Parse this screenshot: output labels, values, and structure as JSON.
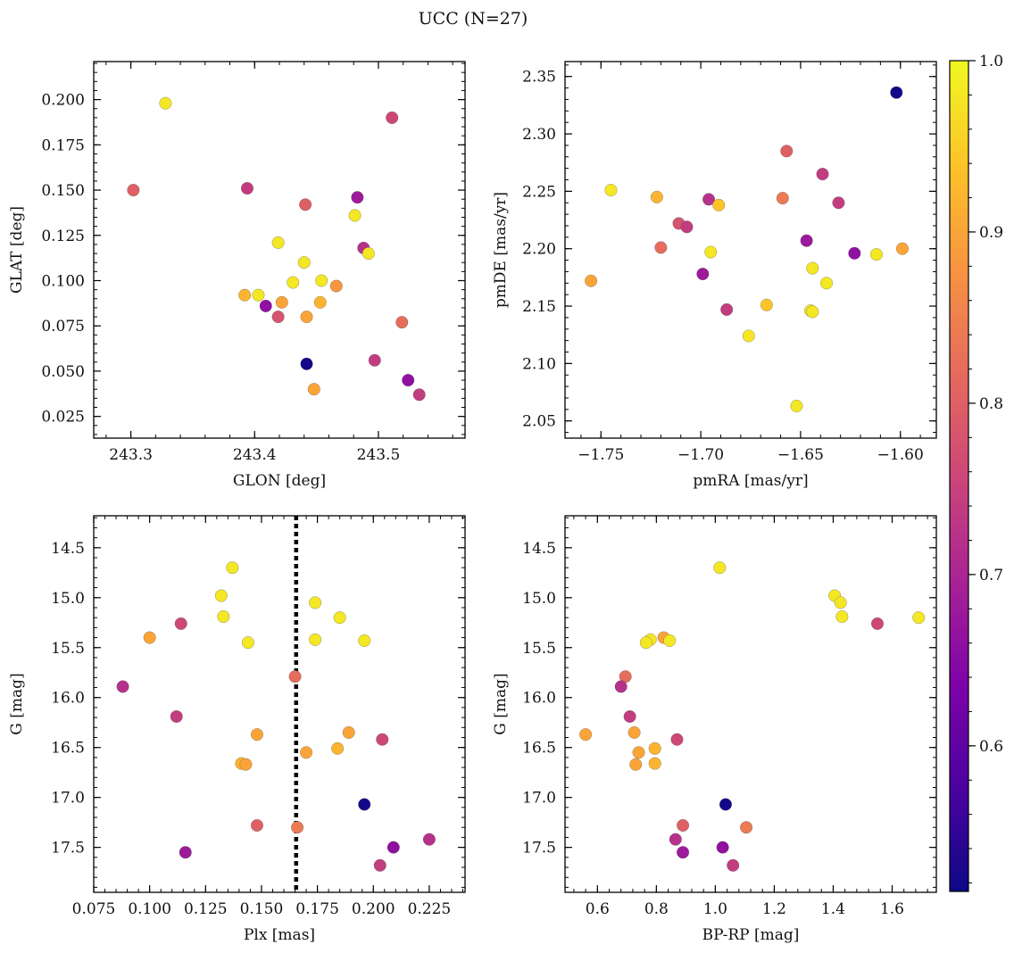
{
  "figure": {
    "title": "UCC (N=27)"
  },
  "colorbar": {
    "min": 0.515,
    "max": 1.0,
    "ticks": [
      0.6,
      0.7,
      0.8,
      0.9,
      1.0
    ],
    "tick_labels": [
      "0.6",
      "0.7",
      "0.8",
      "0.9",
      "1.0"
    ],
    "colormap": "plasma"
  },
  "chart_data": [
    {
      "type": "scatter",
      "id": "glon-glat",
      "xlabel": "GLON [deg]",
      "ylabel": "GLAT [deg]",
      "xlim": [
        243.27,
        243.57
      ],
      "ylim": [
        0.013,
        0.221
      ],
      "xticks": [
        243.3,
        243.4,
        243.5
      ],
      "xtick_labels": [
        "243.3",
        "243.4",
        "243.5"
      ],
      "yticks": [
        0.025,
        0.05,
        0.075,
        0.1,
        0.125,
        0.15,
        0.175,
        0.2
      ],
      "ytick_labels": [
        "0.025",
        "0.050",
        "0.075",
        "0.100",
        "0.125",
        "0.150",
        "0.175",
        "0.200"
      ],
      "points": [
        {
          "x": 243.302,
          "y": 0.15,
          "c": 0.8
        },
        {
          "x": 243.328,
          "y": 0.198,
          "c": 0.98
        },
        {
          "x": 243.394,
          "y": 0.151,
          "c": 0.74
        },
        {
          "x": 243.511,
          "y": 0.19,
          "c": 0.76
        },
        {
          "x": 243.441,
          "y": 0.142,
          "c": 0.8
        },
        {
          "x": 243.483,
          "y": 0.146,
          "c": 0.68
        },
        {
          "x": 243.481,
          "y": 0.136,
          "c": 0.98
        },
        {
          "x": 243.419,
          "y": 0.121,
          "c": 0.98
        },
        {
          "x": 243.488,
          "y": 0.118,
          "c": 0.72
        },
        {
          "x": 243.492,
          "y": 0.115,
          "c": 0.98
        },
        {
          "x": 243.44,
          "y": 0.11,
          "c": 0.98
        },
        {
          "x": 243.454,
          "y": 0.1,
          "c": 0.98
        },
        {
          "x": 243.431,
          "y": 0.099,
          "c": 0.98
        },
        {
          "x": 243.466,
          "y": 0.097,
          "c": 0.88
        },
        {
          "x": 243.392,
          "y": 0.092,
          "c": 0.92
        },
        {
          "x": 243.403,
          "y": 0.092,
          "c": 0.98
        },
        {
          "x": 243.422,
          "y": 0.088,
          "c": 0.9
        },
        {
          "x": 243.453,
          "y": 0.088,
          "c": 0.92
        },
        {
          "x": 243.409,
          "y": 0.086,
          "c": 0.66
        },
        {
          "x": 243.419,
          "y": 0.08,
          "c": 0.78
        },
        {
          "x": 243.442,
          "y": 0.08,
          "c": 0.9
        },
        {
          "x": 243.519,
          "y": 0.077,
          "c": 0.82
        },
        {
          "x": 243.497,
          "y": 0.056,
          "c": 0.74
        },
        {
          "x": 243.442,
          "y": 0.054,
          "c": 0.52
        },
        {
          "x": 243.524,
          "y": 0.045,
          "c": 0.66
        },
        {
          "x": 243.448,
          "y": 0.04,
          "c": 0.9
        },
        {
          "x": 243.533,
          "y": 0.037,
          "c": 0.74
        }
      ]
    },
    {
      "type": "scatter",
      "id": "pmra-pmde",
      "xlabel": "pmRA [mas/yr]",
      "ylabel": "pmDE [mas/yr]",
      "xlim": [
        -1.768,
        -1.582
      ],
      "ylim": [
        2.035,
        2.363
      ],
      "xticks": [
        -1.75,
        -1.7,
        -1.65,
        -1.6
      ],
      "xtick_labels": [
        "−1.75",
        "−1.70",
        "−1.65",
        "−1.60"
      ],
      "yticks": [
        2.05,
        2.1,
        2.15,
        2.2,
        2.25,
        2.3,
        2.35
      ],
      "ytick_labels": [
        "2.05",
        "2.10",
        "2.15",
        "2.20",
        "2.25",
        "2.30",
        "2.35"
      ],
      "points": [
        {
          "x": -1.602,
          "y": 2.336,
          "c": 0.52
        },
        {
          "x": -1.657,
          "y": 2.285,
          "c": 0.8
        },
        {
          "x": -1.639,
          "y": 2.265,
          "c": 0.74
        },
        {
          "x": -1.631,
          "y": 2.24,
          "c": 0.74
        },
        {
          "x": -1.659,
          "y": 2.244,
          "c": 0.84
        },
        {
          "x": -1.745,
          "y": 2.251,
          "c": 0.98
        },
        {
          "x": -1.722,
          "y": 2.245,
          "c": 0.92
        },
        {
          "x": -1.696,
          "y": 2.243,
          "c": 0.72
        },
        {
          "x": -1.691,
          "y": 2.238,
          "c": 0.94
        },
        {
          "x": -1.711,
          "y": 2.222,
          "c": 0.78
        },
        {
          "x": -1.707,
          "y": 2.219,
          "c": 0.74
        },
        {
          "x": -1.72,
          "y": 2.201,
          "c": 0.82
        },
        {
          "x": -1.647,
          "y": 2.207,
          "c": 0.68
        },
        {
          "x": -1.695,
          "y": 2.197,
          "c": 0.98
        },
        {
          "x": -1.623,
          "y": 2.196,
          "c": 0.66
        },
        {
          "x": -1.612,
          "y": 2.195,
          "c": 0.98
        },
        {
          "x": -1.599,
          "y": 2.2,
          "c": 0.9
        },
        {
          "x": -1.644,
          "y": 2.183,
          "c": 0.98
        },
        {
          "x": -1.699,
          "y": 2.178,
          "c": 0.68
        },
        {
          "x": -1.637,
          "y": 2.17,
          "c": 0.98
        },
        {
          "x": -1.755,
          "y": 2.172,
          "c": 0.9
        },
        {
          "x": -1.667,
          "y": 2.151,
          "c": 0.94
        },
        {
          "x": -1.687,
          "y": 2.147,
          "c": 0.74
        },
        {
          "x": -1.645,
          "y": 2.146,
          "c": 0.98
        },
        {
          "x": -1.644,
          "y": 2.145,
          "c": 0.98
        },
        {
          "x": -1.676,
          "y": 2.124,
          "c": 0.98
        },
        {
          "x": -1.652,
          "y": 2.063,
          "c": 0.98
        }
      ]
    },
    {
      "type": "scatter",
      "id": "plx-g",
      "xlabel": "Plx [mas]",
      "ylabel": "G [mag]",
      "xlim": [
        0.075,
        0.241
      ],
      "ylim": [
        17.95,
        14.18
      ],
      "y_inverted": true,
      "xticks": [
        0.075,
        0.1,
        0.125,
        0.15,
        0.175,
        0.2,
        0.225
      ],
      "xtick_labels": [
        "0.075",
        "0.100",
        "0.125",
        "0.150",
        "0.175",
        "0.200",
        "0.225"
      ],
      "yticks": [
        14.5,
        15.0,
        15.5,
        16.0,
        16.5,
        17.0,
        17.5
      ],
      "ytick_labels": [
        "14.5",
        "15.0",
        "15.5",
        "16.0",
        "16.5",
        "17.0",
        "17.5"
      ],
      "vline": {
        "x": 0.1655
      },
      "points": [
        {
          "x": 0.137,
          "y": 14.7,
          "c": 0.98
        },
        {
          "x": 0.132,
          "y": 14.98,
          "c": 0.98
        },
        {
          "x": 0.174,
          "y": 15.05,
          "c": 0.98
        },
        {
          "x": 0.133,
          "y": 15.19,
          "c": 0.98
        },
        {
          "x": 0.185,
          "y": 15.2,
          "c": 0.98
        },
        {
          "x": 0.114,
          "y": 15.26,
          "c": 0.76
        },
        {
          "x": 0.1,
          "y": 15.4,
          "c": 0.9
        },
        {
          "x": 0.174,
          "y": 15.42,
          "c": 0.98
        },
        {
          "x": 0.196,
          "y": 15.43,
          "c": 0.98
        },
        {
          "x": 0.144,
          "y": 15.45,
          "c": 0.98
        },
        {
          "x": 0.165,
          "y": 15.79,
          "c": 0.82
        },
        {
          "x": 0.088,
          "y": 15.89,
          "c": 0.72
        },
        {
          "x": 0.112,
          "y": 16.19,
          "c": 0.74
        },
        {
          "x": 0.189,
          "y": 16.35,
          "c": 0.9
        },
        {
          "x": 0.148,
          "y": 16.37,
          "c": 0.9
        },
        {
          "x": 0.204,
          "y": 16.42,
          "c": 0.76
        },
        {
          "x": 0.184,
          "y": 16.51,
          "c": 0.92
        },
        {
          "x": 0.17,
          "y": 16.55,
          "c": 0.9
        },
        {
          "x": 0.141,
          "y": 16.66,
          "c": 0.92
        },
        {
          "x": 0.143,
          "y": 16.67,
          "c": 0.9
        },
        {
          "x": 0.196,
          "y": 17.07,
          "c": 0.52
        },
        {
          "x": 0.148,
          "y": 17.28,
          "c": 0.8
        },
        {
          "x": 0.166,
          "y": 17.3,
          "c": 0.84
        },
        {
          "x": 0.225,
          "y": 17.42,
          "c": 0.72
        },
        {
          "x": 0.209,
          "y": 17.5,
          "c": 0.66
        },
        {
          "x": 0.116,
          "y": 17.55,
          "c": 0.68
        },
        {
          "x": 0.203,
          "y": 17.68,
          "c": 0.74
        }
      ]
    },
    {
      "type": "scatter",
      "id": "bprp-g",
      "xlabel": "BP-RP [mag]",
      "ylabel": "G [mag]",
      "xlim": [
        0.49,
        1.75
      ],
      "ylim": [
        17.95,
        14.18
      ],
      "y_inverted": true,
      "xticks": [
        0.6,
        0.8,
        1.0,
        1.2,
        1.4,
        1.6
      ],
      "xtick_labels": [
        "0.6",
        "0.8",
        "1.0",
        "1.2",
        "1.4",
        "1.6"
      ],
      "yticks": [
        14.5,
        15.0,
        15.5,
        16.0,
        16.5,
        17.0,
        17.5
      ],
      "ytick_labels": [
        "14.5",
        "15.0",
        "15.5",
        "16.0",
        "16.5",
        "17.0",
        "17.5"
      ],
      "points": [
        {
          "x": 1.015,
          "y": 14.7,
          "c": 0.98
        },
        {
          "x": 1.405,
          "y": 14.98,
          "c": 0.98
        },
        {
          "x": 1.425,
          "y": 15.05,
          "c": 0.98
        },
        {
          "x": 1.43,
          "y": 15.19,
          "c": 0.98
        },
        {
          "x": 1.69,
          "y": 15.2,
          "c": 0.98
        },
        {
          "x": 1.55,
          "y": 15.26,
          "c": 0.76
        },
        {
          "x": 0.825,
          "y": 15.4,
          "c": 0.9
        },
        {
          "x": 0.78,
          "y": 15.42,
          "c": 0.98
        },
        {
          "x": 0.845,
          "y": 15.43,
          "c": 0.98
        },
        {
          "x": 0.765,
          "y": 15.45,
          "c": 0.98
        },
        {
          "x": 0.695,
          "y": 15.79,
          "c": 0.82
        },
        {
          "x": 0.68,
          "y": 15.89,
          "c": 0.72
        },
        {
          "x": 0.71,
          "y": 16.19,
          "c": 0.74
        },
        {
          "x": 0.725,
          "y": 16.35,
          "c": 0.9
        },
        {
          "x": 0.56,
          "y": 16.37,
          "c": 0.9
        },
        {
          "x": 0.87,
          "y": 16.42,
          "c": 0.76
        },
        {
          "x": 0.795,
          "y": 16.51,
          "c": 0.92
        },
        {
          "x": 0.74,
          "y": 16.55,
          "c": 0.9
        },
        {
          "x": 0.795,
          "y": 16.66,
          "c": 0.92
        },
        {
          "x": 0.73,
          "y": 16.67,
          "c": 0.9
        },
        {
          "x": 1.035,
          "y": 17.07,
          "c": 0.52
        },
        {
          "x": 0.89,
          "y": 17.28,
          "c": 0.8
        },
        {
          "x": 1.105,
          "y": 17.3,
          "c": 0.84
        },
        {
          "x": 0.865,
          "y": 17.42,
          "c": 0.72
        },
        {
          "x": 1.025,
          "y": 17.5,
          "c": 0.66
        },
        {
          "x": 0.89,
          "y": 17.55,
          "c": 0.68
        },
        {
          "x": 1.06,
          "y": 17.68,
          "c": 0.74
        }
      ]
    }
  ]
}
